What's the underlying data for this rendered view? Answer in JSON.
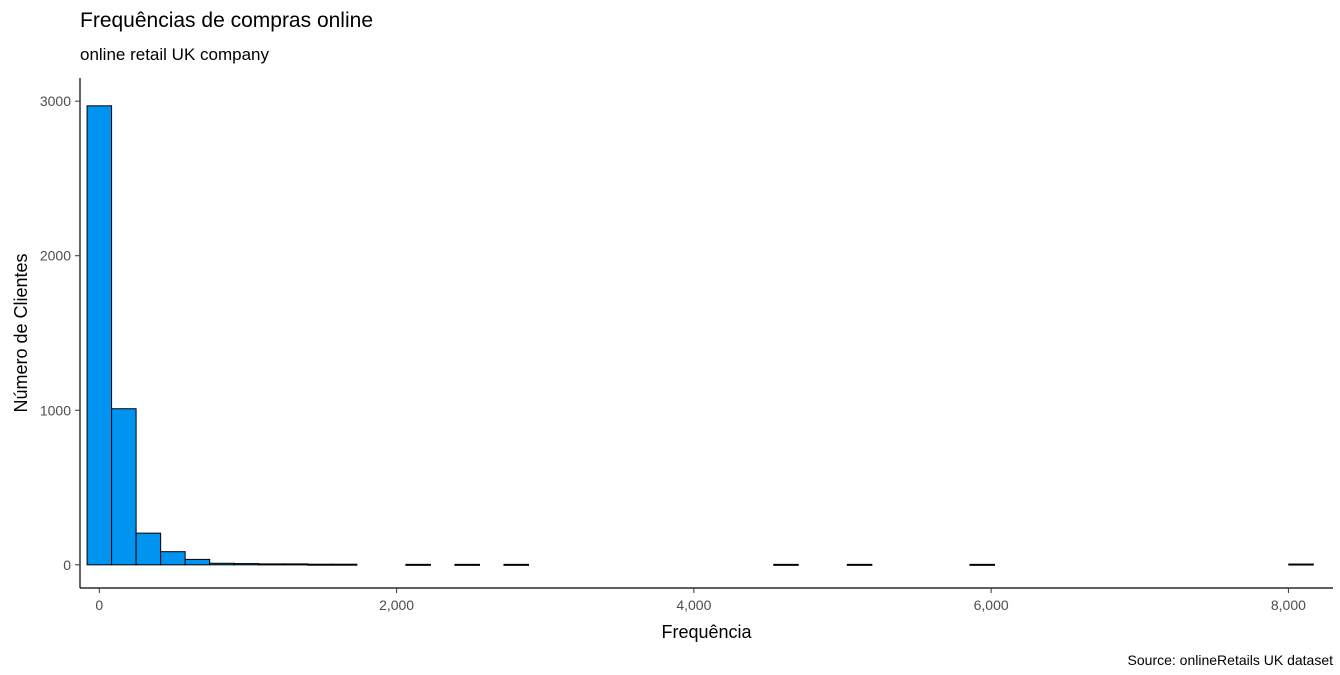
{
  "chart_data": {
    "type": "bar",
    "title": "Frequências de compras online",
    "subtitle": "online retail UK company",
    "caption": "Source: onlineRetails UK dataset",
    "xlabel": "Frequência",
    "ylabel": "Número de Clientes",
    "xlim": [
      -130,
      8300
    ],
    "ylim": [
      -150,
      3150
    ],
    "x_ticks": [
      0,
      2000,
      4000,
      6000,
      8000
    ],
    "x_tick_labels": [
      "0",
      "2,000",
      "4,000",
      "6,000",
      "8,000"
    ],
    "y_ticks": [
      0,
      1000,
      2000,
      3000
    ],
    "y_tick_labels": [
      "0",
      "1000",
      "2000",
      "3000"
    ],
    "bin_width": 165,
    "grid": false,
    "bar_color": "#0094F0",
    "bar_edge_color": "#000000",
    "bins": [
      {
        "x": 0,
        "count": 2970
      },
      {
        "x": 165,
        "count": 1010
      },
      {
        "x": 330,
        "count": 205
      },
      {
        "x": 495,
        "count": 85
      },
      {
        "x": 660,
        "count": 35
      },
      {
        "x": 825,
        "count": 10
      },
      {
        "x": 990,
        "count": 8
      },
      {
        "x": 1155,
        "count": 6
      },
      {
        "x": 1320,
        "count": 6
      },
      {
        "x": 1485,
        "count": 4
      },
      {
        "x": 1650,
        "count": 4
      },
      {
        "x": 2145,
        "count": 3
      },
      {
        "x": 2475,
        "count": 3
      },
      {
        "x": 2805,
        "count": 3
      },
      {
        "x": 4620,
        "count": 3
      },
      {
        "x": 5115,
        "count": 3
      },
      {
        "x": 5940,
        "count": 3
      },
      {
        "x": 8085,
        "count": 5
      }
    ]
  }
}
